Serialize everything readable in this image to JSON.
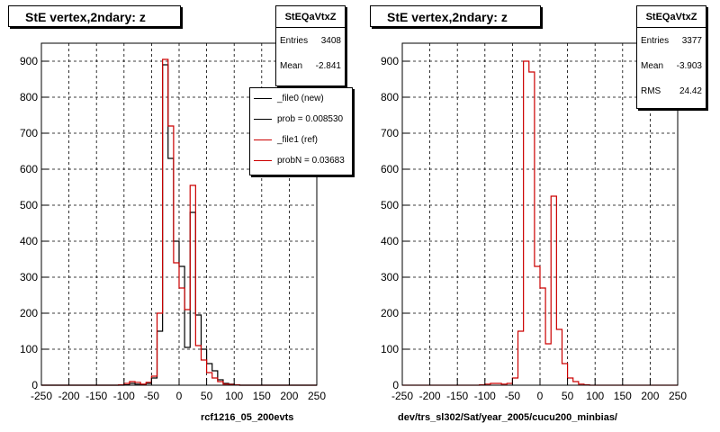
{
  "colors": {
    "new": "#000000",
    "ref": "#cc0000",
    "grid": "#000000"
  },
  "left_panel": {
    "title": "StE  vertex,2ndary: z",
    "stats": {
      "name": "StEQaVtxZ",
      "rows": [
        {
          "label": "Entries",
          "value": "3408"
        },
        {
          "label": "Mean",
          "value": "-2.841"
        }
      ]
    },
    "legend": [
      {
        "label": "_file0 (new)",
        "color": "#000000"
      },
      {
        "label": "prob = 0.008530",
        "color": "#000000"
      },
      {
        "label": "_file1 (ref)",
        "color": "#cc0000"
      },
      {
        "label": "probN = 0.03683",
        "color": "#cc0000"
      }
    ],
    "bottom_label": "rcf1216_05_200evts"
  },
  "right_panel": {
    "title": "StE  vertex,2ndary: z",
    "stats": {
      "name": "StEQaVtxZ",
      "rows": [
        {
          "label": "Entries",
          "value": "3377"
        },
        {
          "label": "Mean",
          "value": "-3.903"
        },
        {
          "label": "RMS",
          "value": "24.42"
        }
      ]
    },
    "bottom_label": "dev/trs_sl302/Sat/year_2005/cucu200_minbias/"
  },
  "chart_data": [
    {
      "type": "histogram",
      "title": "StE  vertex,2ndary: z",
      "xlim": [
        -250,
        250
      ],
      "ylim": [
        0,
        950
      ],
      "grid": true,
      "x_ticks": [
        -250,
        -200,
        -150,
        -100,
        -50,
        0,
        50,
        100,
        150,
        200,
        250
      ],
      "y_ticks": [
        0,
        100,
        200,
        300,
        400,
        500,
        600,
        700,
        800,
        900
      ],
      "bin_edges": [
        -250,
        -240,
        -230,
        -220,
        -210,
        -200,
        -190,
        -180,
        -170,
        -160,
        -150,
        -140,
        -130,
        -120,
        -110,
        -100,
        -90,
        -80,
        -70,
        -60,
        -50,
        -40,
        -30,
        -20,
        -10,
        0,
        10,
        20,
        30,
        40,
        50,
        60,
        70,
        80,
        90,
        100,
        110,
        120,
        130,
        140,
        150,
        160,
        170,
        180,
        190,
        200,
        210,
        220,
        230,
        240,
        250
      ],
      "series": [
        {
          "name": "_file0 (new)",
          "color": "#000000",
          "values": [
            0,
            0,
            0,
            0,
            0,
            0,
            0,
            0,
            0,
            0,
            0,
            0,
            0,
            0,
            0,
            1,
            5,
            3,
            2,
            5,
            20,
            150,
            890,
            630,
            400,
            330,
            105,
            480,
            195,
            100,
            60,
            40,
            15,
            5,
            3,
            1,
            0,
            0,
            0,
            0,
            0,
            0,
            0,
            0,
            0,
            0,
            0,
            0,
            0,
            0
          ]
        },
        {
          "name": "_file1 (ref)",
          "color": "#cc0000",
          "values": [
            0,
            0,
            0,
            0,
            0,
            0,
            0,
            0,
            0,
            0,
            0,
            0,
            0,
            0,
            1,
            5,
            10,
            8,
            3,
            8,
            25,
            200,
            905,
            720,
            340,
            270,
            210,
            555,
            110,
            70,
            35,
            20,
            10,
            3,
            2,
            1,
            0,
            0,
            0,
            0,
            0,
            0,
            0,
            0,
            0,
            0,
            0,
            0,
            0,
            0
          ]
        }
      ]
    },
    {
      "type": "histogram",
      "title": "StE  vertex,2ndary: z",
      "xlim": [
        -250,
        250
      ],
      "ylim": [
        0,
        950
      ],
      "grid": true,
      "x_ticks": [
        -250,
        -200,
        -150,
        -100,
        -50,
        0,
        50,
        100,
        150,
        200,
        250
      ],
      "y_ticks": [
        0,
        100,
        200,
        300,
        400,
        500,
        600,
        700,
        800,
        900
      ],
      "bin_edges": [
        -250,
        -240,
        -230,
        -220,
        -210,
        -200,
        -190,
        -180,
        -170,
        -160,
        -150,
        -140,
        -130,
        -120,
        -110,
        -100,
        -90,
        -80,
        -70,
        -60,
        -50,
        -40,
        -30,
        -20,
        -10,
        0,
        10,
        20,
        30,
        40,
        50,
        60,
        70,
        80,
        90,
        100,
        110,
        120,
        130,
        140,
        150,
        160,
        170,
        180,
        190,
        200,
        210,
        220,
        230,
        240,
        250
      ],
      "series": [
        {
          "name": "cucu200_minbias",
          "color": "#cc0000",
          "values": [
            0,
            0,
            0,
            0,
            0,
            0,
            0,
            0,
            0,
            0,
            0,
            0,
            0,
            0,
            1,
            3,
            5,
            5,
            3,
            5,
            20,
            150,
            900,
            870,
            330,
            270,
            115,
            525,
            155,
            60,
            20,
            10,
            3,
            1,
            0,
            0,
            0,
            0,
            0,
            0,
            0,
            0,
            0,
            0,
            0,
            0,
            0,
            0,
            0,
            0
          ]
        }
      ]
    }
  ]
}
